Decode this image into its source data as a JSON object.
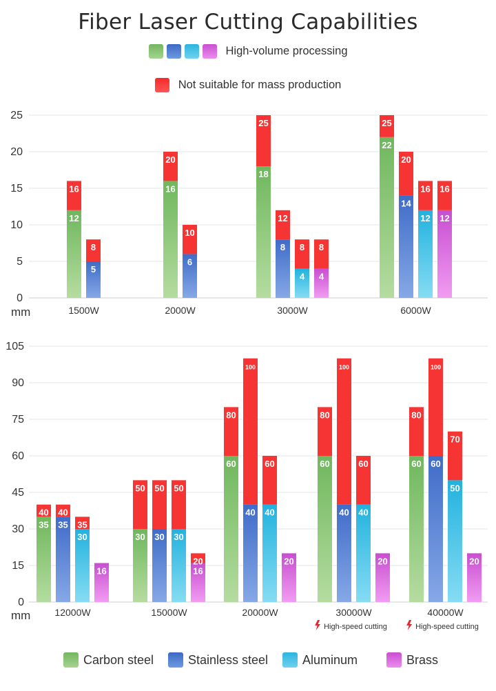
{
  "title": "Fiber Laser Cutting Capabilities",
  "legend_top": {
    "high_volume": "High-volume processing",
    "not_suitable": "Not suitable for mass production"
  },
  "legend_bottom": [
    "Carbon steel",
    "Stainless steel",
    "Aluminum",
    "Brass"
  ],
  "colors": {
    "carbon_steel": "#7cbf69",
    "stainless_steel": "#4a76cf",
    "aluminum": "#35bde4",
    "brass": "#d35ad9",
    "not_suitable": "#f73434"
  },
  "chart_data": [
    {
      "type": "bar",
      "stacked": true,
      "unit": "mm",
      "ylim": [
        0,
        25
      ],
      "yticks": [
        0,
        5,
        10,
        15,
        20,
        25
      ],
      "grid": true,
      "categories": [
        "1500W",
        "2000W",
        "3000W",
        "6000W"
      ],
      "series": [
        {
          "name": "Carbon steel",
          "high_volume": [
            12,
            16,
            18,
            22
          ],
          "max": [
            16,
            20,
            25,
            25
          ]
        },
        {
          "name": "Stainless steel",
          "high_volume": [
            5,
            6,
            8,
            14
          ],
          "max": [
            8,
            10,
            12,
            20
          ]
        },
        {
          "name": "Aluminum",
          "high_volume": [
            null,
            null,
            4,
            12
          ],
          "max": [
            null,
            null,
            8,
            16
          ]
        },
        {
          "name": "Brass",
          "high_volume": [
            null,
            null,
            4,
            12
          ],
          "max": [
            null,
            null,
            8,
            16
          ]
        }
      ]
    },
    {
      "type": "bar",
      "stacked": true,
      "unit": "mm",
      "ylim": [
        0,
        105
      ],
      "yticks": [
        0,
        15,
        30,
        45,
        60,
        75,
        90,
        105
      ],
      "grid": true,
      "categories": [
        "12000W",
        "15000W",
        "20000W",
        "30000W",
        "40000W"
      ],
      "category_notes": [
        "",
        "",
        "",
        "High-speed cutting",
        "High-speed cutting"
      ],
      "series": [
        {
          "name": "Carbon steel",
          "high_volume": [
            35,
            30,
            60,
            60,
            60
          ],
          "max": [
            40,
            50,
            80,
            80,
            80
          ]
        },
        {
          "name": "Stainless steel",
          "high_volume": [
            35,
            30,
            40,
            40,
            60
          ],
          "max": [
            40,
            50,
            100,
            100,
            100
          ]
        },
        {
          "name": "Aluminum",
          "high_volume": [
            30,
            30,
            40,
            40,
            50
          ],
          "max": [
            35,
            50,
            60,
            60,
            70
          ]
        },
        {
          "name": "Brass",
          "high_volume": [
            16,
            16,
            20,
            20,
            20
          ],
          "max": [
            null,
            20,
            null,
            null,
            null
          ]
        }
      ]
    }
  ]
}
